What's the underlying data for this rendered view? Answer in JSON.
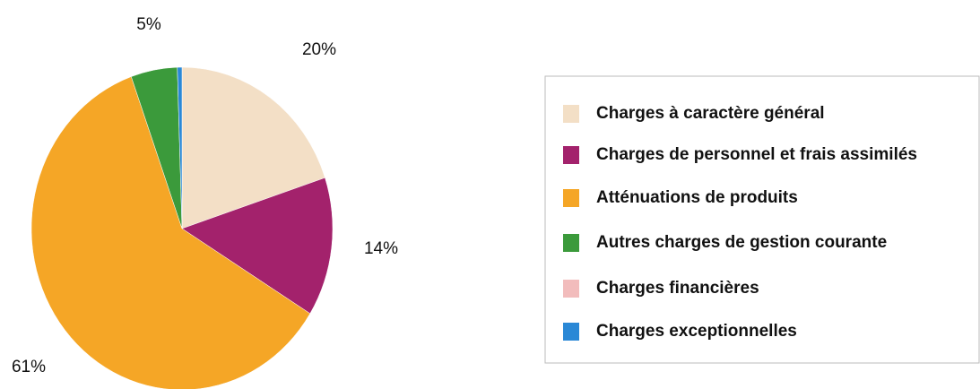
{
  "chart_data": {
    "type": "pie",
    "categories": [
      "Charges à caractère général",
      "Charges de personnel et frais assimilés",
      "Atténuations de produits",
      "Autres charges de gestion courante",
      "Charges financières",
      "Charges exceptionnelles"
    ],
    "values": [
      20,
      14,
      61,
      5,
      0,
      0.5
    ],
    "value_labels": [
      "20%",
      "14%",
      "61%",
      "5%",
      null,
      null
    ],
    "colors": [
      "#f3dfc6",
      "#a3226c",
      "#f5a626",
      "#3b9a3b",
      "#f2bcbc",
      "#2a88d6"
    ],
    "legend": "right"
  }
}
